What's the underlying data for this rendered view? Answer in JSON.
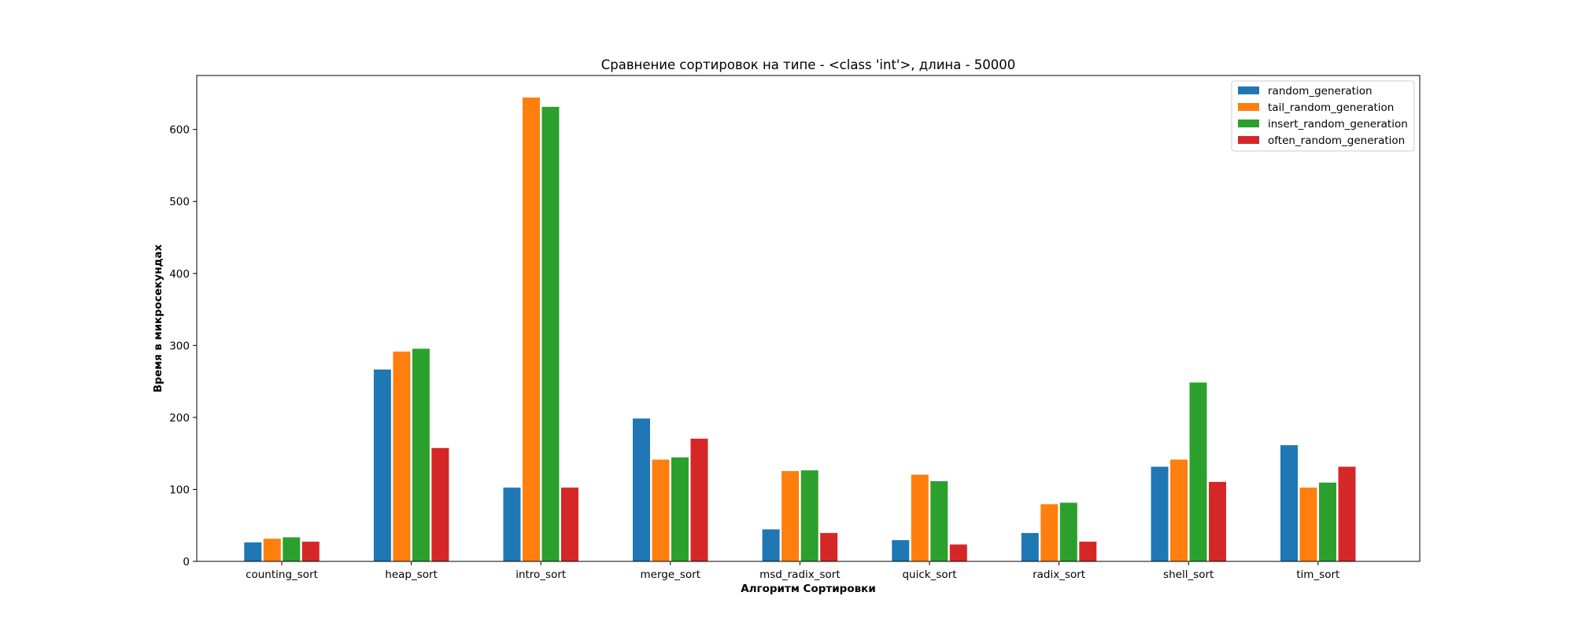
{
  "chart_data": {
    "type": "bar",
    "title": "Сравнение сортировок на типе - <class 'int'>, длина - 50000",
    "xlabel": "Алгоритм Сортировки",
    "ylabel": "Время в микросекундах",
    "ylim": [
      0,
      675
    ],
    "yticks": [
      0,
      100,
      200,
      300,
      400,
      500,
      600
    ],
    "grid": false,
    "legend_position": "top-right",
    "categories": [
      "counting_sort",
      "heap_sort",
      "intro_sort",
      "merge_sort",
      "msd_radix_sort",
      "quick_sort",
      "radix_sort",
      "shell_sort",
      "tim_sort"
    ],
    "series": [
      {
        "name": "random_generation",
        "color": "#1f77b4",
        "values": [
          27,
          267,
          103,
          199,
          45,
          30,
          40,
          132,
          162
        ]
      },
      {
        "name": "tail_random_generation",
        "color": "#ff7f0e",
        "values": [
          32,
          292,
          645,
          142,
          126,
          121,
          80,
          142,
          103
        ]
      },
      {
        "name": "insert_random_generation",
        "color": "#2ca02c",
        "values": [
          34,
          296,
          632,
          145,
          127,
          112,
          82,
          249,
          110
        ]
      },
      {
        "name": "often_random_generation",
        "color": "#d62728",
        "values": [
          28,
          158,
          103,
          171,
          40,
          24,
          28,
          111,
          132
        ]
      }
    ]
  }
}
